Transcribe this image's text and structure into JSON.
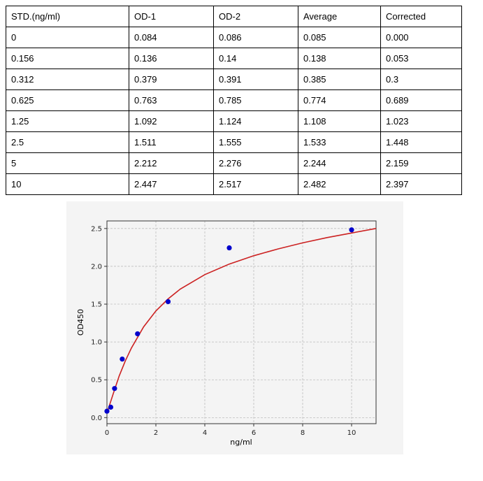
{
  "table": {
    "headers": [
      "STD.(ng/ml)",
      "OD-1",
      "OD-2",
      "Average",
      "Corrected"
    ],
    "rows": [
      [
        "0",
        "0.084",
        "0.086",
        "0.085",
        "0.000"
      ],
      [
        "0.156",
        "0.136",
        "0.14",
        "0.138",
        "0.053"
      ],
      [
        "0.312",
        "0.379",
        "0.391",
        "0.385",
        "0.3"
      ],
      [
        "0.625",
        "0.763",
        "0.785",
        "0.774",
        "0.689"
      ],
      [
        "1.25",
        "1.092",
        "1.124",
        "1.108",
        "1.023"
      ],
      [
        "2.5",
        "1.511",
        "1.555",
        "1.533",
        "1.448"
      ],
      [
        "5",
        "2.212",
        "2.276",
        "2.244",
        "2.159"
      ],
      [
        "10",
        "2.447",
        "2.517",
        "2.482",
        "2.397"
      ]
    ]
  },
  "chart_data": {
    "type": "scatter",
    "title": "",
    "xlabel": "ng/ml",
    "ylabel": "OD450",
    "xlim": [
      0,
      11
    ],
    "ylim": [
      -0.08,
      2.6
    ],
    "x_ticks": [
      "0",
      "2",
      "4",
      "6",
      "8",
      "10"
    ],
    "y_ticks": [
      "0.0",
      "0.5",
      "1.0",
      "1.5",
      "2.0",
      "2.5"
    ],
    "grid": true,
    "series": [
      {
        "kind": "points",
        "x": [
          0,
          0.156,
          0.312,
          0.625,
          1.25,
          2.5,
          5,
          10
        ],
        "y": [
          0.085,
          0.138,
          0.385,
          0.774,
          1.108,
          1.533,
          2.244,
          2.482
        ],
        "color": "#0000cc"
      },
      {
        "kind": "fitted-curve",
        "x": [
          0,
          0.25,
          0.5,
          0.75,
          1,
          1.5,
          2,
          2.5,
          3,
          4,
          5,
          6,
          7,
          8,
          9,
          10,
          11
        ],
        "y": [
          0.06,
          0.31,
          0.55,
          0.75,
          0.92,
          1.2,
          1.41,
          1.57,
          1.7,
          1.89,
          2.03,
          2.14,
          2.23,
          2.31,
          2.38,
          2.44,
          2.5
        ],
        "color": "#cc2222"
      }
    ]
  }
}
